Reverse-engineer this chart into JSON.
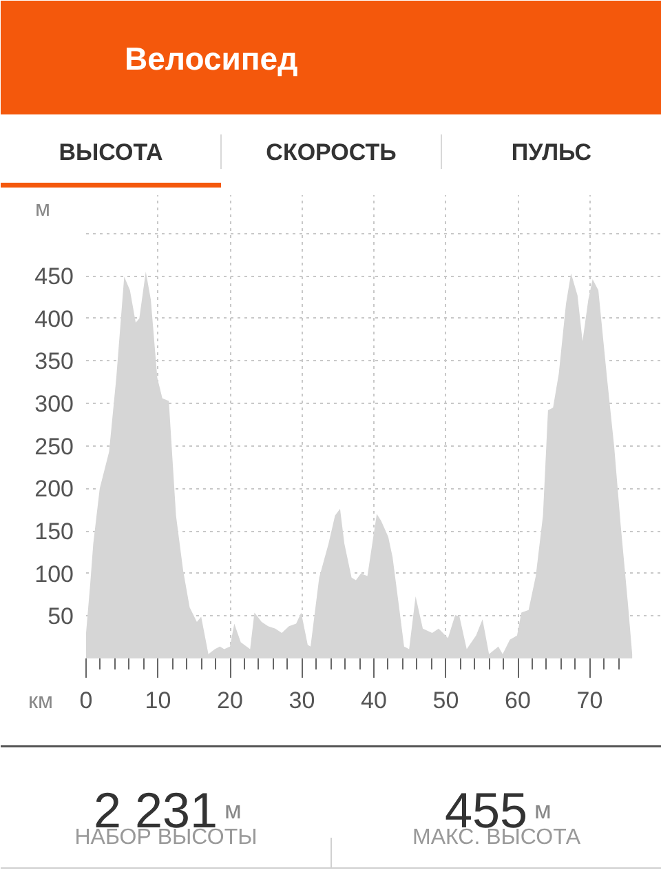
{
  "chart_data": {
    "type": "area",
    "title": "Велосипед",
    "xlabel": "км",
    "ylabel": "м",
    "color": "#d6d6d6",
    "x": [
      0,
      0.6,
      1.0,
      1.9,
      3.2,
      4.2,
      5.3,
      6.1,
      6.9,
      7.4,
      8.3,
      9.0,
      9.9,
      10.6,
      11.5,
      12.5,
      13.5,
      14.4,
      15.4,
      16.0,
      17.0,
      17.9,
      18.6,
      19.2,
      20.0,
      20.6,
      21.5,
      22.8,
      23.4,
      24.4,
      25.3,
      26.3,
      27.2,
      28.2,
      29.2,
      29.9,
      30.8,
      31.2,
      32.4,
      33.7,
      34.6,
      35.3,
      35.9,
      36.9,
      37.5,
      38.2,
      39.1,
      40.4,
      41.0,
      42.0,
      42.6,
      43.6,
      44.2,
      44.9,
      45.8,
      46.8,
      48.1,
      49.0,
      50.3,
      51.3,
      51.9,
      52.9,
      54.2,
      55.1,
      56.0,
      57.3,
      57.9,
      58.9,
      59.9,
      60.5,
      61.5,
      62.5,
      63.5,
      64.2,
      64.9,
      65.7,
      66.7,
      67.4,
      68.3,
      69.0,
      69.8,
      70.4,
      71.2,
      72.4,
      73.4,
      74.3,
      75.3,
      75.9
    ],
    "values": [
      30,
      90,
      135,
      200,
      243,
      330,
      449,
      433,
      395,
      400,
      455,
      422,
      330,
      306,
      303,
      168,
      103,
      60,
      43,
      49,
      5,
      11,
      14,
      11,
      14,
      41,
      19,
      11,
      54,
      43,
      38,
      35,
      30,
      38,
      41,
      54,
      16,
      14,
      95,
      135,
      168,
      176,
      135,
      95,
      92,
      100,
      97,
      170,
      162,
      143,
      119,
      54,
      14,
      11,
      73,
      35,
      30,
      35,
      24,
      51,
      49,
      11,
      27,
      46,
      5,
      14,
      5,
      22,
      27,
      54,
      57,
      97,
      168,
      292,
      295,
      335,
      417,
      453,
      427,
      373,
      422,
      446,
      433,
      330,
      249,
      157,
      65,
      5
    ],
    "xlim": [
      0,
      80
    ],
    "ylim": [
      0,
      545
    ],
    "xticks": [
      0,
      {
        "value": 2,
        "label": null
      },
      {
        "value": 4,
        "label": null
      },
      {
        "value": 6,
        "label": null
      },
      {
        "value": 8,
        "label": null
      },
      10,
      {
        "value": 12,
        "label": null
      },
      {
        "value": 14,
        "label": null
      },
      {
        "value": 16,
        "label": null
      },
      {
        "value": 18,
        "label": null
      },
      20,
      {
        "value": 22,
        "label": null
      },
      {
        "value": 24,
        "label": null
      },
      {
        "value": 26,
        "label": null
      },
      {
        "value": 28,
        "label": null
      },
      30,
      {
        "value": 32,
        "label": null
      },
      {
        "value": 34,
        "label": null
      },
      {
        "value": 36,
        "label": null
      },
      {
        "value": 38,
        "label": null
      },
      40,
      {
        "value": 42,
        "label": null
      },
      {
        "value": 44,
        "label": null
      },
      {
        "value": 46,
        "label": null
      },
      {
        "value": 48,
        "label": null
      },
      50,
      {
        "value": 52,
        "label": null
      },
      {
        "value": 54,
        "label": null
      },
      {
        "value": 56,
        "label": null
      },
      {
        "value": 58,
        "label": null
      },
      60,
      {
        "value": 62,
        "label": null
      },
      {
        "value": 64,
        "label": null
      },
      {
        "value": 66,
        "label": null
      },
      {
        "value": 68,
        "label": null
      },
      70,
      {
        "value": 72,
        "label": null
      },
      {
        "value": 74,
        "label": null
      }
    ],
    "yticks": [
      50,
      100,
      150,
      200,
      250,
      300,
      350,
      400,
      450,
      {
        "value": 500,
        "label": null
      }
    ],
    "grid": true,
    "annotations": [
      "ВЫСОТА",
      "СКОРОСТЬ",
      "ПУЛЬС",
      "2 231",
      "м",
      "НАБОР ВЫСОТЫ",
      "455",
      "м",
      "МАКС. ВЫСОТА"
    ]
  }
}
